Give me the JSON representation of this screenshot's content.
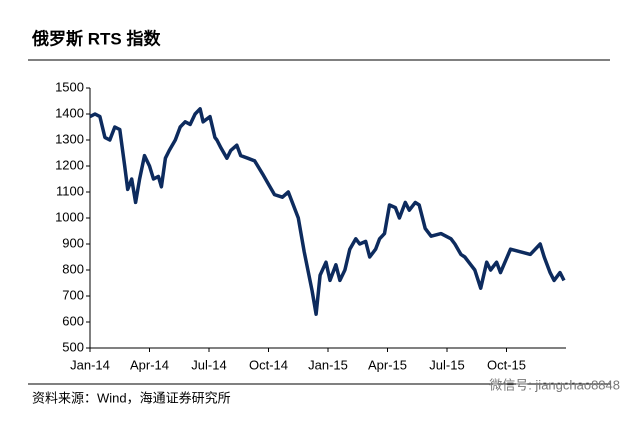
{
  "chart_data": {
    "type": "line",
    "title": "俄罗斯 RTS 指数",
    "x": [
      0,
      0.25,
      0.5,
      0.75,
      1.0,
      1.25,
      1.5,
      1.75,
      1.9,
      2.1,
      2.3,
      2.5,
      2.75,
      3.0,
      3.2,
      3.45,
      3.6,
      3.8,
      4.0,
      4.3,
      4.55,
      4.8,
      5.05,
      5.3,
      5.55,
      5.7,
      6.05,
      6.3,
      6.4,
      6.6,
      6.9,
      7.1,
      7.4,
      7.6,
      7.95,
      8.3,
      8.7,
      9.0,
      9.3,
      9.7,
      10.0,
      10.2,
      10.5,
      10.8,
      11.2,
      11.4,
      11.6,
      11.9,
      12.1,
      12.4,
      12.6,
      12.85,
      13.1,
      13.4,
      13.6,
      13.9,
      14.1,
      14.4,
      14.6,
      14.85,
      15.1,
      15.4,
      15.6,
      15.9,
      16.1,
      16.4,
      16.6,
      16.9,
      17.2,
      17.7,
      18.2,
      18.4,
      18.7,
      18.9,
      19.2,
      19.4,
      19.7,
      20.0,
      20.2,
      20.5,
      20.7,
      21.2,
      21.7,
      22.2,
      22.7,
      22.9,
      23.2,
      23.4,
      23.7,
      23.9
    ],
    "values": [
      1390,
      1400,
      1390,
      1310,
      1300,
      1350,
      1340,
      1200,
      1110,
      1150,
      1060,
      1150,
      1240,
      1200,
      1150,
      1160,
      1120,
      1230,
      1260,
      1300,
      1350,
      1370,
      1360,
      1400,
      1420,
      1370,
      1390,
      1310,
      1300,
      1270,
      1230,
      1260,
      1280,
      1240,
      1230,
      1220,
      1170,
      1130,
      1090,
      1080,
      1100,
      1060,
      1000,
      870,
      720,
      630,
      780,
      830,
      760,
      820,
      760,
      800,
      880,
      920,
      900,
      910,
      850,
      880,
      920,
      940,
      1050,
      1040,
      1000,
      1060,
      1030,
      1060,
      1050,
      960,
      930,
      940,
      920,
      900,
      860,
      850,
      820,
      800,
      730,
      830,
      800,
      830,
      790,
      880,
      870,
      860,
      900,
      850,
      790,
      760,
      790,
      760
    ],
    "color": "#0d2b5e",
    "xlim": [
      0,
      24
    ],
    "xticks": [
      {
        "value": 0,
        "label": "Jan-14"
      },
      {
        "value": 3,
        "label": "Apr-14"
      },
      {
        "value": 6,
        "label": "Jul-14"
      },
      {
        "value": 9,
        "label": "Oct-14"
      },
      {
        "value": 12,
        "label": "Jan-15"
      },
      {
        "value": 15,
        "label": "Apr-15"
      },
      {
        "value": 18,
        "label": "Jul-15"
      },
      {
        "value": 21,
        "label": "Oct-15"
      }
    ],
    "ylim": [
      500,
      1500
    ],
    "yticks": [
      500,
      600,
      700,
      800,
      900,
      1000,
      1100,
      1200,
      1300,
      1400,
      1500
    ],
    "grid": false
  },
  "footer": {
    "source": "资料来源：Wind，海通证券研究所",
    "watermark": "微信号: jiangchao8848"
  }
}
